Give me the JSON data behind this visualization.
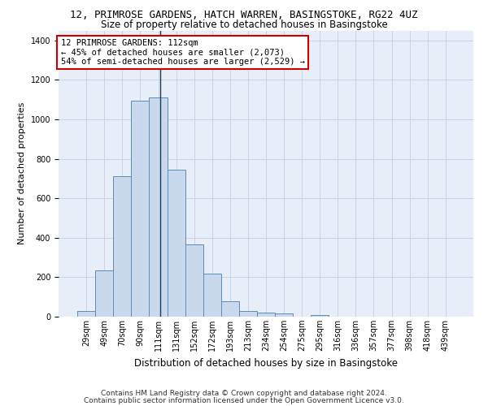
{
  "title_line1": "12, PRIMROSE GARDENS, HATCH WARREN, BASINGSTOKE, RG22 4UZ",
  "title_line2": "Size of property relative to detached houses in Basingstoke",
  "xlabel": "Distribution of detached houses by size in Basingstoke",
  "ylabel": "Number of detached properties",
  "bar_labels": [
    "29sqm",
    "49sqm",
    "70sqm",
    "90sqm",
    "111sqm",
    "131sqm",
    "152sqm",
    "172sqm",
    "193sqm",
    "213sqm",
    "234sqm",
    "254sqm",
    "275sqm",
    "295sqm",
    "316sqm",
    "336sqm",
    "357sqm",
    "377sqm",
    "398sqm",
    "418sqm",
    "439sqm"
  ],
  "bar_values": [
    30,
    235,
    710,
    1095,
    1110,
    745,
    365,
    220,
    80,
    30,
    20,
    15,
    0,
    10,
    0,
    0,
    0,
    0,
    0,
    0,
    0
  ],
  "bar_color": "#c8d9ee",
  "bar_edge_color": "#5b8db8",
  "grid_color": "#c8d4e8",
  "bg_color": "#e8eef8",
  "vline_color": "#1a3a5c",
  "annotation_box_text": "12 PRIMROSE GARDENS: 112sqm\n← 45% of detached houses are smaller (2,073)\n54% of semi-detached houses are larger (2,529) →",
  "annotation_box_color": "#cc0000",
  "annotation_text_color": "#000000",
  "footer_line1": "Contains HM Land Registry data © Crown copyright and database right 2024.",
  "footer_line2": "Contains public sector information licensed under the Open Government Licence v3.0.",
  "ylim": [
    0,
    1450
  ],
  "title1_fontsize": 9,
  "title2_fontsize": 8.5,
  "xlabel_fontsize": 8.5,
  "ylabel_fontsize": 8,
  "tick_fontsize": 7,
  "ann_fontsize": 7.5,
  "footer_fontsize": 6.5
}
